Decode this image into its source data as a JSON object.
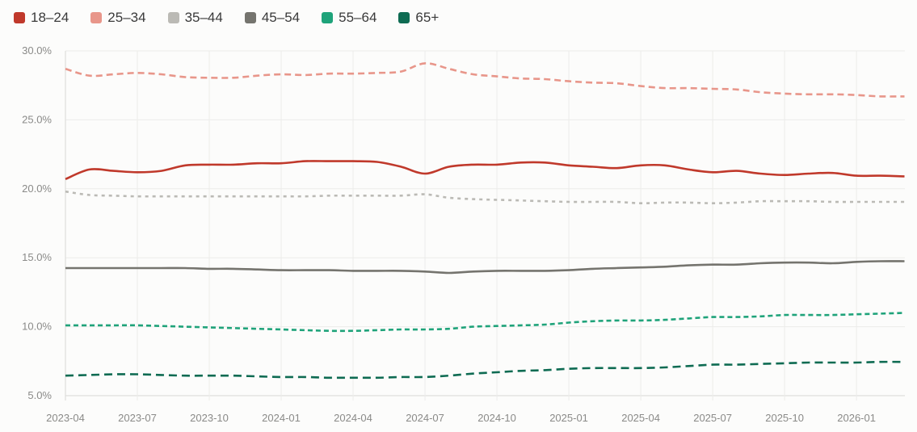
{
  "chart_data": {
    "type": "line",
    "title": "",
    "xlabel": "",
    "ylabel": "",
    "ylim": [
      5,
      30
    ],
    "grid": true,
    "legend_position": "top-left",
    "y_ticks": [
      "30.0%",
      "25.0%",
      "20.0%",
      "15.0%",
      "10.0%",
      "5.0%"
    ],
    "x_ticks": [
      "2023-04",
      "2023-07",
      "2023-10",
      "2024-01",
      "2024-04",
      "2024-07",
      "2024-10",
      "2025-01",
      "2025-04",
      "2025-07",
      "2025-10",
      "2026-01"
    ],
    "x": [
      "2023-04",
      "2023-05",
      "2023-06",
      "2023-07",
      "2023-08",
      "2023-09",
      "2023-10",
      "2023-11",
      "2023-12",
      "2024-01",
      "2024-02",
      "2024-03",
      "2024-04",
      "2024-05",
      "2024-06",
      "2024-07",
      "2024-08",
      "2024-09",
      "2024-10",
      "2024-11",
      "2024-12",
      "2025-01",
      "2025-02",
      "2025-03",
      "2025-04",
      "2025-05",
      "2025-06",
      "2025-07",
      "2025-08",
      "2025-09",
      "2025-10",
      "2025-11",
      "2025-12",
      "2026-01",
      "2026-02",
      "2026-03"
    ],
    "series": [
      {
        "name": "18-24",
        "color": "#c0392b",
        "dash": "solid",
        "values": [
          20.7,
          21.4,
          21.3,
          21.2,
          21.3,
          21.7,
          21.75,
          21.75,
          21.85,
          21.85,
          22.0,
          22.0,
          22.0,
          21.95,
          21.6,
          21.1,
          21.6,
          21.75,
          21.75,
          21.9,
          21.9,
          21.7,
          21.6,
          21.5,
          21.7,
          21.7,
          21.4,
          21.2,
          21.3,
          21.1,
          21.0,
          21.1,
          21.15,
          20.95,
          20.95,
          20.9
        ]
      },
      {
        "name": "25-34",
        "color": "#e8968a",
        "dash": "dashed",
        "values": [
          28.7,
          28.2,
          28.3,
          28.4,
          28.3,
          28.1,
          28.05,
          28.05,
          28.2,
          28.3,
          28.25,
          28.35,
          28.35,
          28.4,
          28.5,
          29.1,
          28.7,
          28.3,
          28.15,
          28.0,
          27.95,
          27.8,
          27.7,
          27.65,
          27.45,
          27.3,
          27.3,
          27.25,
          27.2,
          27.0,
          26.9,
          26.85,
          26.85,
          26.8,
          26.7,
          26.7
        ]
      },
      {
        "name": "35-44",
        "color": "#bbbab5",
        "dash": "dotted",
        "values": [
          19.8,
          19.55,
          19.5,
          19.45,
          19.45,
          19.45,
          19.45,
          19.45,
          19.45,
          19.45,
          19.45,
          19.5,
          19.5,
          19.5,
          19.5,
          19.6,
          19.35,
          19.25,
          19.2,
          19.15,
          19.1,
          19.05,
          19.05,
          19.05,
          18.95,
          19.0,
          19.0,
          18.95,
          19.0,
          19.1,
          19.1,
          19.1,
          19.05,
          19.05,
          19.05,
          19.05
        ]
      },
      {
        "name": "45-54",
        "color": "#75746e",
        "dash": "solid",
        "values": [
          14.25,
          14.25,
          14.25,
          14.25,
          14.25,
          14.25,
          14.2,
          14.2,
          14.15,
          14.1,
          14.1,
          14.1,
          14.05,
          14.05,
          14.05,
          14.0,
          13.9,
          14.0,
          14.05,
          14.05,
          14.05,
          14.1,
          14.2,
          14.25,
          14.3,
          14.35,
          14.45,
          14.5,
          14.5,
          14.6,
          14.65,
          14.65,
          14.6,
          14.7,
          14.75,
          14.75
        ]
      },
      {
        "name": "55-64",
        "color": "#1fa37a",
        "dash": "dashed-short",
        "values": [
          10.1,
          10.1,
          10.1,
          10.1,
          10.05,
          10.0,
          9.95,
          9.9,
          9.85,
          9.8,
          9.75,
          9.7,
          9.7,
          9.75,
          9.8,
          9.8,
          9.85,
          10.0,
          10.05,
          10.1,
          10.15,
          10.3,
          10.4,
          10.45,
          10.45,
          10.5,
          10.6,
          10.7,
          10.7,
          10.75,
          10.85,
          10.85,
          10.85,
          10.9,
          10.95,
          11.0
        ]
      },
      {
        "name": "65+",
        "color": "#0e6b52",
        "dash": "dashed-long",
        "values": [
          6.45,
          6.5,
          6.55,
          6.55,
          6.5,
          6.45,
          6.45,
          6.45,
          6.4,
          6.35,
          6.35,
          6.3,
          6.3,
          6.3,
          6.35,
          6.35,
          6.45,
          6.6,
          6.7,
          6.8,
          6.85,
          6.95,
          7.0,
          7.0,
          7.0,
          7.05,
          7.15,
          7.25,
          7.25,
          7.3,
          7.35,
          7.4,
          7.4,
          7.4,
          7.45,
          7.45
        ]
      }
    ]
  }
}
